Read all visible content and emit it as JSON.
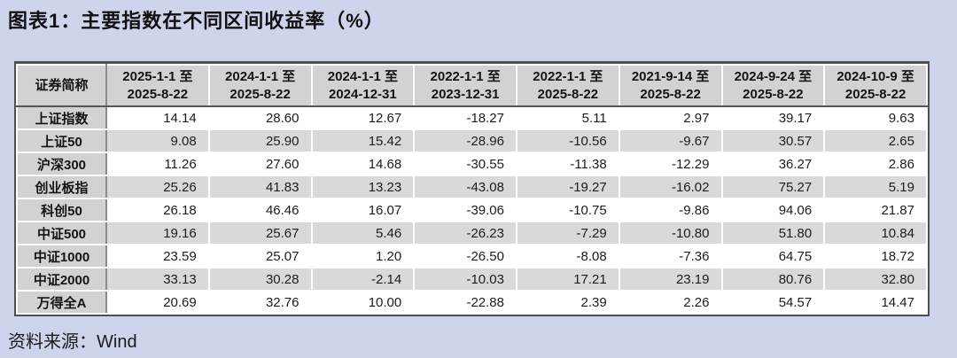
{
  "title": "图表1：主要指数在不同区间收益率（%）",
  "source": "资料来源：Wind",
  "colors": {
    "page_background": "#cfd4ed",
    "header_fill": "#d2d2d2",
    "stripe_fill": "#d9d9d9",
    "row_fill": "#ffffff",
    "outer_border": "#4f4f4f",
    "inner_border": "#8a8a8a",
    "text": "#141414"
  },
  "chart_data": {
    "type": "table",
    "title": "图表1：主要指数在不同区间收益率（%）",
    "source": "资料来源：Wind",
    "columns": [
      "证券简称",
      "2025-1-1 至\n2025-8-22",
      "2024-1-1 至\n2025-8-22",
      "2024-1-1 至\n2024-12-31",
      "2022-1-1 至\n2023-12-31",
      "2022-1-1 至\n2025-8-22",
      "2021-9-14 至\n2025-8-22",
      "2024-9-24 至\n2025-8-22",
      "2024-10-9 至\n2025-8-22"
    ],
    "rows": [
      {
        "name": "上证指数",
        "values": [
          "14.14",
          "28.60",
          "12.67",
          "-18.27",
          "5.11",
          "2.97",
          "39.17",
          "9.63"
        ]
      },
      {
        "name": "上证50",
        "values": [
          "9.08",
          "25.90",
          "15.42",
          "-28.96",
          "-10.56",
          "-9.67",
          "30.57",
          "2.65"
        ]
      },
      {
        "name": "沪深300",
        "values": [
          "11.26",
          "27.60",
          "14.68",
          "-30.55",
          "-11.38",
          "-12.29",
          "36.27",
          "2.86"
        ]
      },
      {
        "name": "创业板指",
        "values": [
          "25.26",
          "41.83",
          "13.23",
          "-43.08",
          "-19.27",
          "-16.02",
          "75.27",
          "5.19"
        ]
      },
      {
        "name": "科创50",
        "values": [
          "26.18",
          "46.46",
          "16.07",
          "-39.06",
          "-10.75",
          "-9.86",
          "94.06",
          "21.87"
        ]
      },
      {
        "name": "中证500",
        "values": [
          "19.16",
          "25.67",
          "5.46",
          "-26.23",
          "-7.29",
          "-10.80",
          "51.80",
          "10.84"
        ]
      },
      {
        "name": "中证1000",
        "values": [
          "23.59",
          "25.07",
          "1.20",
          "-26.50",
          "-8.08",
          "-7.36",
          "64.75",
          "18.72"
        ]
      },
      {
        "name": "中证2000",
        "values": [
          "33.13",
          "30.28",
          "-2.14",
          "-10.03",
          "17.21",
          "23.19",
          "80.76",
          "32.80"
        ]
      },
      {
        "name": "万得全A",
        "values": [
          "20.69",
          "32.76",
          "10.00",
          "-22.88",
          "2.39",
          "2.26",
          "54.57",
          "14.47"
        ]
      }
    ]
  }
}
